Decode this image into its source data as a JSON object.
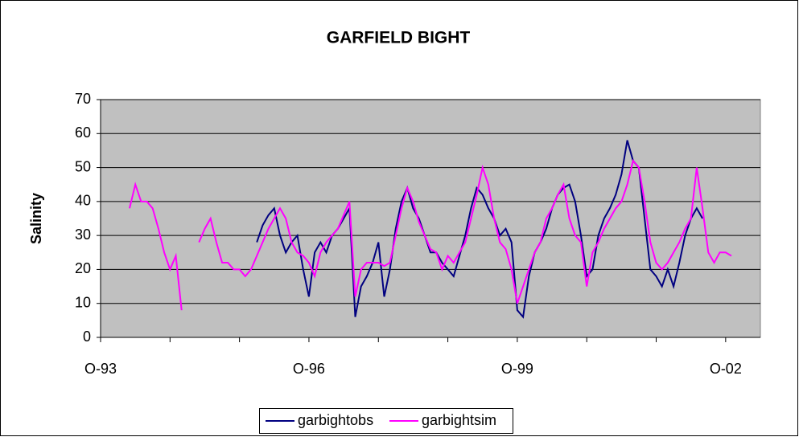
{
  "chart_data": {
    "type": "line",
    "title": "GARFIELD BIGHT",
    "y_label": "Salinity",
    "x": [
      "1994-03",
      "1994-04",
      "1994-05",
      "1994-06",
      "1994-07",
      "1994-08",
      "1994-09",
      "1994-10",
      "1994-11",
      "1994-12",
      "1995-01",
      "1995-02",
      "1995-03",
      "1995-04",
      "1995-05",
      "1995-06",
      "1995-07",
      "1995-08",
      "1995-09",
      "1995-10",
      "1995-11",
      "1995-12",
      "1996-01",
      "1996-02",
      "1996-03",
      "1996-04",
      "1996-05",
      "1996-06",
      "1996-07",
      "1996-08",
      "1996-09",
      "1996-10",
      "1996-11",
      "1996-12",
      "1997-01",
      "1997-02",
      "1997-03",
      "1997-04",
      "1997-05",
      "1997-06",
      "1997-07",
      "1997-08",
      "1997-09",
      "1997-10",
      "1997-11",
      "1997-12",
      "1998-01",
      "1998-02",
      "1998-03",
      "1998-04",
      "1998-05",
      "1998-06",
      "1998-07",
      "1998-08",
      "1998-09",
      "1998-10",
      "1998-11",
      "1998-12",
      "1999-01",
      "1999-02",
      "1999-03",
      "1999-04",
      "1999-05",
      "1999-06",
      "1999-07",
      "1999-08",
      "1999-09",
      "1999-10",
      "1999-11",
      "1999-12",
      "2000-01",
      "2000-02",
      "2000-03",
      "2000-04",
      "2000-05",
      "2000-06",
      "2000-07",
      "2000-08",
      "2000-09",
      "2000-10",
      "2000-11",
      "2000-12",
      "2001-01",
      "2001-02",
      "2001-03",
      "2001-04",
      "2001-05",
      "2001-06",
      "2001-07",
      "2001-08",
      "2001-09",
      "2001-10",
      "2001-11",
      "2001-12",
      "2002-01",
      "2002-02",
      "2002-03",
      "2002-04",
      "2002-05",
      "2002-06",
      "2002-07",
      "2002-08",
      "2002-09",
      "2002-10",
      "2002-11"
    ],
    "series": [
      {
        "name": "garbightobs",
        "color": "#000080",
        "values": [
          null,
          null,
          null,
          null,
          null,
          null,
          null,
          null,
          null,
          null,
          null,
          null,
          null,
          null,
          null,
          null,
          null,
          null,
          null,
          null,
          null,
          null,
          28,
          33,
          36,
          38,
          30,
          25,
          28,
          30,
          20,
          12,
          25,
          28,
          25,
          30,
          32,
          35,
          38,
          6,
          15,
          18,
          22,
          28,
          12,
          20,
          32,
          40,
          44,
          38,
          35,
          30,
          25,
          25,
          22,
          20,
          18,
          24,
          30,
          38,
          44,
          42,
          38,
          35,
          30,
          32,
          28,
          8,
          6,
          18,
          25,
          28,
          32,
          38,
          42,
          44,
          45,
          40,
          30,
          18,
          20,
          30,
          35,
          38,
          42,
          48,
          58,
          52,
          50,
          35,
          20,
          18,
          15,
          20,
          15,
          22,
          30,
          35,
          38,
          35,
          null,
          null,
          null,
          null,
          null
        ]
      },
      {
        "name": "garbightsim",
        "color": "#FF00FF",
        "values": [
          38,
          45,
          40,
          40,
          38,
          32,
          25,
          20,
          24,
          8,
          null,
          null,
          28,
          32,
          35,
          28,
          22,
          22,
          20,
          20,
          18,
          20,
          24,
          28,
          32,
          35,
          38,
          35,
          28,
          25,
          24,
          22,
          18,
          25,
          28,
          30,
          32,
          36,
          40,
          12,
          20,
          22,
          22,
          22,
          21,
          22,
          30,
          38,
          44,
          40,
          34,
          30,
          26,
          25,
          20,
          24,
          22,
          25,
          28,
          35,
          42,
          50,
          45,
          35,
          28,
          26,
          20,
          10,
          15,
          20,
          25,
          28,
          35,
          38,
          42,
          45,
          35,
          30,
          28,
          15,
          25,
          28,
          32,
          35,
          38,
          40,
          45,
          52,
          50,
          40,
          28,
          22,
          20,
          22,
          25,
          28,
          32,
          35,
          50,
          38,
          25,
          22,
          25,
          25,
          24
        ]
      }
    ],
    "xlim": [
      "1993-10",
      "2003-04"
    ],
    "xticks": [
      {
        "value": "1993-10",
        "label": "O-93"
      },
      {
        "value": "1996-10",
        "label": "O-96"
      },
      {
        "value": "1999-10",
        "label": "O-99"
      },
      {
        "value": "2002-10",
        "label": "O-02"
      }
    ],
    "xminor_ticks": [
      "1994-10",
      "1995-10",
      "1997-10",
      "1998-10",
      "2000-10",
      "2001-10"
    ],
    "ylim": [
      0,
      70
    ],
    "yticks": [
      0,
      10,
      20,
      30,
      40,
      50,
      60,
      70
    ],
    "grid": true,
    "legend": "bottom"
  }
}
